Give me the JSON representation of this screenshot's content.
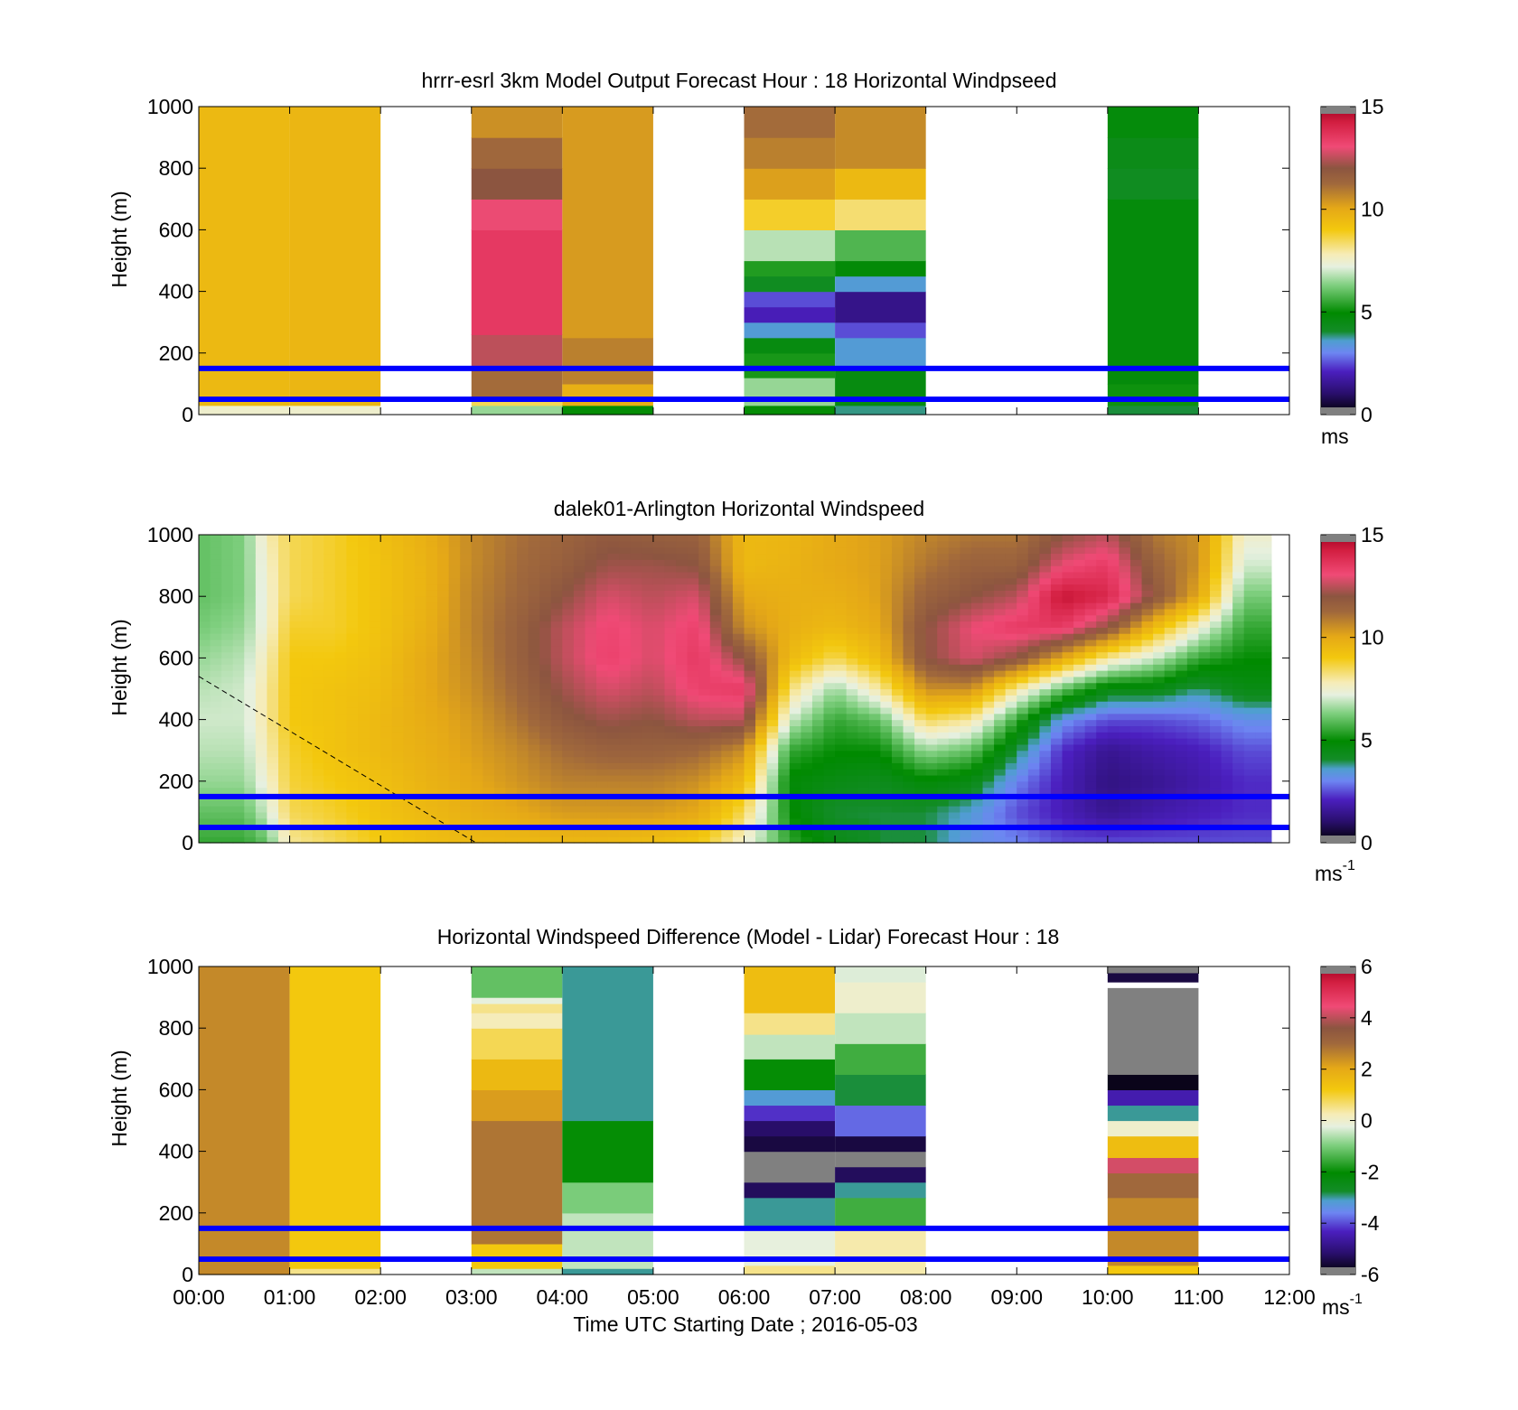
{
  "figure": {
    "xlabel": "Time UTC  Starting Date ; 2016-05-03",
    "x_tick_labels": [
      "00:00",
      "01:00",
      "02:00",
      "03:00",
      "04:00",
      "05:00",
      "06:00",
      "07:00",
      "08:00",
      "09:00",
      "10:00",
      "11:00",
      "12:00"
    ],
    "reference_line_color": "#0000ff",
    "reference_heights": [
      150,
      50
    ]
  },
  "chart_data": [
    {
      "type": "heatmap",
      "id": "model",
      "title": "hrrr-esrl 3km Model Output   Forecast Hour : 18 Horizontal Windpseed",
      "ylabel": "Height (m)",
      "ylim": [
        0,
        1000
      ],
      "y_ticks": [
        0,
        200,
        400,
        600,
        800,
        1000
      ],
      "xlim_hours": [
        0,
        12
      ],
      "colorbar": {
        "min": 0,
        "max": 15,
        "ticks": [
          0,
          5,
          10,
          15
        ],
        "unit_label": "ms",
        "unit_superscript": ""
      },
      "hourly_columns": [
        {
          "hours": [
            0,
            1
          ],
          "levels": [
            [
              0,
              30,
              7.5
            ],
            [
              30,
              1000,
              9.5
            ]
          ]
        },
        {
          "hours": [
            1,
            2
          ],
          "levels": [
            [
              0,
              30,
              7.5
            ],
            [
              30,
              1000,
              9.6
            ]
          ]
        },
        {
          "hours": [
            3,
            4
          ],
          "levels": [
            [
              0,
              30,
              6.5
            ],
            [
              30,
              60,
              8.5
            ],
            [
              60,
              150,
              11.2
            ],
            [
              150,
              260,
              12.5
            ],
            [
              260,
              600,
              13.5
            ],
            [
              600,
              700,
              13
            ],
            [
              700,
              800,
              12
            ],
            [
              800,
              900,
              11.3
            ],
            [
              900,
              1000,
              10.5
            ]
          ]
        },
        {
          "hours": [
            4,
            5
          ],
          "levels": [
            [
              0,
              30,
              5
            ],
            [
              30,
              100,
              9.8
            ],
            [
              100,
              250,
              10.8
            ],
            [
              250,
              1000,
              10.3
            ]
          ]
        },
        {
          "hours": [
            6,
            7
          ],
          "levels": [
            [
              0,
              30,
              5
            ],
            [
              30,
              120,
              6.5
            ],
            [
              120,
              200,
              5.2
            ],
            [
              200,
              250,
              4.6
            ],
            [
              250,
              300,
              3.5
            ],
            [
              300,
              350,
              2
            ],
            [
              350,
              400,
              2.5
            ],
            [
              400,
              450,
              4.2
            ],
            [
              450,
              500,
              5.3
            ],
            [
              500,
              600,
              6.8
            ],
            [
              600,
              700,
              8.8
            ],
            [
              700,
              800,
              10.2
            ],
            [
              800,
              900,
              10.8
            ],
            [
              900,
              1000,
              11.2
            ]
          ]
        },
        {
          "hours": [
            7,
            8
          ],
          "levels": [
            [
              0,
              30,
              3.8
            ],
            [
              30,
              150,
              4.6
            ],
            [
              150,
              250,
              3.5
            ],
            [
              250,
              300,
              2.5
            ],
            [
              300,
              400,
              1.4
            ],
            [
              400,
              450,
              3.5
            ],
            [
              450,
              500,
              4.8
            ],
            [
              500,
              600,
              5.8
            ],
            [
              600,
              700,
              8.3
            ],
            [
              700,
              800,
              9.5
            ],
            [
              800,
              1000,
              10.6
            ]
          ]
        },
        {
          "hours": [
            10,
            11
          ],
          "levels": [
            [
              0,
              30,
              4
            ],
            [
              30,
              100,
              5.1
            ],
            [
              100,
              700,
              4.7
            ],
            [
              700,
              800,
              4.2
            ],
            [
              800,
              900,
              4.4
            ],
            [
              900,
              1000,
              4.7
            ]
          ]
        }
      ]
    },
    {
      "type": "heatmap",
      "id": "lidar",
      "title": "dalek01-Arlington  Horizontal Windspeed",
      "ylabel": "Height (m)",
      "ylim": [
        0,
        1000
      ],
      "y_ticks": [
        0,
        200,
        400,
        600,
        800,
        1000
      ],
      "xlim_hours": [
        0,
        12
      ],
      "data_end_hour": 11.8,
      "colorbar": {
        "min": 0,
        "max": 15,
        "ticks": [
          0,
          5,
          10,
          15
        ],
        "unit_label": "ms",
        "unit_superscript": "-1"
      },
      "dashed_line": {
        "from": [
          0,
          540
        ],
        "to": [
          3.05,
          0
        ]
      },
      "profile_hours": [
        0,
        0.5,
        0.75,
        1,
        1.5,
        2,
        2.5,
        3,
        3.5,
        4,
        4.5,
        5,
        5.5,
        6,
        6.5,
        7,
        7.5,
        8,
        8.5,
        9,
        9.5,
        10,
        10.5,
        11,
        11.5,
        11.8
      ],
      "profile_heights": [
        0,
        100,
        200,
        300,
        400,
        500,
        600,
        700,
        800,
        900,
        1000
      ],
      "profiles": [
        [
          5.5,
          6,
          6.5,
          6.8,
          7,
          6.8,
          6.5,
          6.2,
          6,
          6,
          6
        ],
        [
          5.5,
          6,
          6.5,
          6.8,
          7,
          7,
          6.8,
          6.5,
          6.3,
          6.3,
          6.3
        ],
        [
          6,
          7,
          7.5,
          7.8,
          8,
          8,
          7.8,
          7.5,
          7.5,
          7.6,
          7.8
        ],
        [
          8,
          8.5,
          8.7,
          8.8,
          9,
          9,
          9,
          8.8,
          8.5,
          8.5,
          8.5
        ],
        [
          8.5,
          8.8,
          9,
          9.2,
          9.2,
          9.2,
          9,
          8.8,
          8.8,
          8.8,
          8.8
        ],
        [
          9,
          9.2,
          9.3,
          9.5,
          9.5,
          9.4,
          9.3,
          9.2,
          9.2,
          9.2,
          9.3
        ],
        [
          9.3,
          9.5,
          9.7,
          9.8,
          9.9,
          10,
          10,
          9.8,
          9.7,
          9.7,
          9.8
        ],
        [
          9.5,
          9.8,
          10,
          10.2,
          10.3,
          10.5,
          10.6,
          10.7,
          10.7,
          10.6,
          10.6
        ],
        [
          9.5,
          10,
          10.4,
          10.6,
          11,
          11.3,
          11.5,
          11.5,
          11.3,
          11.2,
          11.1
        ],
        [
          9.5,
          10.3,
          10.8,
          11.2,
          11.8,
          12.2,
          12.5,
          12.5,
          12,
          11.6,
          11.4
        ],
        [
          9.5,
          10.3,
          10.8,
          11.5,
          12.2,
          12.8,
          13.3,
          13.2,
          12.8,
          12.2,
          11.8
        ],
        [
          9.3,
          10.3,
          10.8,
          11.5,
          12,
          12.5,
          12.8,
          12.8,
          12.5,
          12.2,
          11.6
        ],
        [
          9,
          10,
          10.5,
          11.3,
          12.5,
          13.3,
          13.5,
          13.3,
          12.8,
          12,
          11.5
        ],
        [
          7.5,
          8.5,
          9.5,
          10.5,
          12.5,
          13.5,
          12,
          10.5,
          10,
          9.5,
          9.5
        ],
        [
          5.5,
          5,
          4.8,
          5.5,
          7,
          8.3,
          9.5,
          9.8,
          9.8,
          9.7,
          9.6
        ],
        [
          4.5,
          4,
          4.5,
          5,
          5.5,
          6.5,
          8.5,
          9.5,
          9.8,
          10,
          10
        ],
        [
          4,
          4,
          4.3,
          5,
          6,
          8,
          9.5,
          10,
          10.2,
          10.2,
          10.2
        ],
        [
          4,
          4,
          4.8,
          6.5,
          8.5,
          10.5,
          12,
          12,
          11.5,
          11,
          10.7
        ],
        [
          3.2,
          3.5,
          4.5,
          6,
          8,
          10.5,
          12.8,
          13,
          12,
          11.5,
          11
        ],
        [
          3,
          2.5,
          3,
          4,
          5.5,
          8,
          12,
          13.5,
          12.5,
          11.5,
          11
        ],
        [
          2.5,
          2,
          2,
          2.2,
          3.2,
          6,
          10,
          13.5,
          14.5,
          13,
          12
        ],
        [
          2.5,
          1.5,
          1.3,
          1.5,
          2.5,
          4.5,
          8,
          12,
          14,
          13.5,
          12.5
        ],
        [
          2.5,
          1.8,
          1.5,
          1.8,
          2.5,
          4.5,
          7,
          9.5,
          12,
          11.5,
          11
        ],
        [
          2.5,
          2,
          1.8,
          2,
          2.7,
          3.8,
          5.5,
          7.5,
          10,
          10.5,
          10.5
        ],
        [
          2.5,
          2.2,
          2.2,
          2.5,
          3.2,
          4.5,
          5,
          5.5,
          6.2,
          7,
          7.5
        ],
        [
          2.5,
          2.2,
          2.2,
          2.5,
          3.2,
          4.5,
          5,
          5.5,
          6.2,
          7,
          7.5
        ]
      ]
    },
    {
      "type": "heatmap",
      "id": "difference",
      "title": "Horizontal Windspeed Difference (Model - Lidar) Forecast Hour : 18",
      "ylabel": "Height (m)",
      "ylim": [
        0,
        1000
      ],
      "y_ticks": [
        0,
        200,
        400,
        600,
        800,
        1000
      ],
      "xlim_hours": [
        0,
        12
      ],
      "colorbar": {
        "min": -6,
        "max": 6,
        "ticks": [
          -6,
          -4,
          -2,
          0,
          2,
          4,
          6
        ],
        "unit_label": "ms",
        "unit_superscript": "-1"
      },
      "hourly_columns": [
        {
          "hours": [
            0,
            1
          ],
          "levels": [
            [
              0,
              30,
              2.5
            ],
            [
              30,
              1000,
              2.5
            ]
          ]
        },
        {
          "hours": [
            1,
            2
          ],
          "levels": [
            [
              0,
              20,
              0.5
            ],
            [
              20,
              1000,
              1.2
            ]
          ]
        },
        {
          "hours": [
            3,
            4
          ],
          "levels": [
            [
              0,
              20,
              -0.5
            ],
            [
              20,
              100,
              1.2
            ],
            [
              100,
              500,
              2.8
            ],
            [
              500,
              600,
              2.2
            ],
            [
              600,
              700,
              1.6
            ],
            [
              700,
              800,
              0.8
            ],
            [
              800,
              850,
              0.2
            ],
            [
              850,
              880,
              0.5
            ],
            [
              880,
              900,
              -0.2
            ],
            [
              900,
              1000,
              -1.2
            ]
          ]
        },
        {
          "hours": [
            4,
            5
          ],
          "levels": [
            [
              0,
              20,
              -3
            ],
            [
              20,
              200,
              -0.5
            ],
            [
              200,
              300,
              -1
            ],
            [
              300,
              500,
              -2
            ],
            [
              500,
              1000,
              -3
            ]
          ]
        },
        {
          "hours": [
            6,
            7
          ],
          "levels": [
            [
              0,
              30,
              0.5
            ],
            [
              30,
              150,
              -0.2
            ],
            [
              150,
              250,
              -3
            ],
            [
              250,
              300,
              -5.3
            ],
            [
              300,
              400,
              -6.5
            ],
            [
              400,
              450,
              -5.5
            ],
            [
              450,
              500,
              -5.2
            ],
            [
              500,
              550,
              -4.2
            ],
            [
              550,
              600,
              -3.2
            ],
            [
              600,
              700,
              -2
            ],
            [
              700,
              780,
              -0.5
            ],
            [
              780,
              850,
              0.5
            ],
            [
              850,
              1000,
              1.5
            ]
          ]
        },
        {
          "hours": [
            7,
            8
          ],
          "levels": [
            [
              0,
              150,
              0.3
            ],
            [
              150,
              250,
              -1.5
            ],
            [
              250,
              300,
              -3
            ],
            [
              300,
              350,
              -5.3
            ],
            [
              350,
              400,
              -6.5
            ],
            [
              400,
              450,
              -5.5
            ],
            [
              450,
              550,
              -3.8
            ],
            [
              550,
              650,
              -2.8
            ],
            [
              650,
              750,
              -1.5
            ],
            [
              750,
              850,
              -0.5
            ],
            [
              850,
              950,
              0
            ],
            [
              950,
              1000,
              -0.3
            ]
          ]
        },
        {
          "hours": [
            10,
            11
          ],
          "levels": [
            [
              0,
              30,
              1.2
            ],
            [
              30,
              250,
              2.5
            ],
            [
              250,
              330,
              3
            ],
            [
              330,
              380,
              4.2
            ],
            [
              380,
              450,
              1.5
            ],
            [
              450,
              500,
              0
            ],
            [
              500,
              550,
              -3
            ],
            [
              550,
              600,
              -4.5
            ],
            [
              600,
              650,
              -5.8
            ],
            [
              650,
              930,
              -7
            ],
            [
              950,
              980,
              -5.5
            ],
            [
              980,
              1000,
              -6.5
            ]
          ]
        }
      ]
    }
  ]
}
